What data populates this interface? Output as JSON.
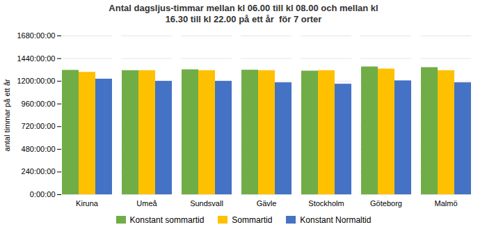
{
  "chart_data": {
    "type": "bar",
    "title": "Antal dagsljus-timmar mellan kl 06.00 till kl 08.00 och mellan kl\n16.30 till kl 22.00 på ett år  för 7 orter",
    "ylabel": "antal timmar på ett år",
    "categories": [
      "Kiruna",
      "Umeå",
      "Sundsvall",
      "Gävle",
      "Stockholm",
      "Göteborg",
      "Malmö"
    ],
    "series": [
      {
        "name": "Konstant sommartid",
        "color": "#70AD47",
        "values": [
          1316,
          1313,
          1322,
          1318,
          1308,
          1352,
          1345
        ]
      },
      {
        "name": "Sommartid",
        "color": "#FFC000",
        "values": [
          1295,
          1313,
          1313,
          1313,
          1313,
          1330,
          1313
        ]
      },
      {
        "name": "Konstant Normaltid",
        "color": "#4472C4",
        "values": [
          1223,
          1200,
          1200,
          1185,
          1170,
          1205,
          1185
        ]
      }
    ],
    "ylim": [
      0,
      1680
    ],
    "yticks": [
      {
        "value": 0,
        "label": "0:00:00"
      },
      {
        "value": 240,
        "label": "240:00:00"
      },
      {
        "value": 480,
        "label": "480:00:00"
      },
      {
        "value": 720,
        "label": "720:00:00"
      },
      {
        "value": 960,
        "label": "960:00:00"
      },
      {
        "value": 1200,
        "label": "1200:00:00"
      },
      {
        "value": 1440,
        "label": "1440:00:00"
      },
      {
        "value": 1680,
        "label": "1680:00:00"
      }
    ],
    "grid": true,
    "legend": "bottom"
  }
}
